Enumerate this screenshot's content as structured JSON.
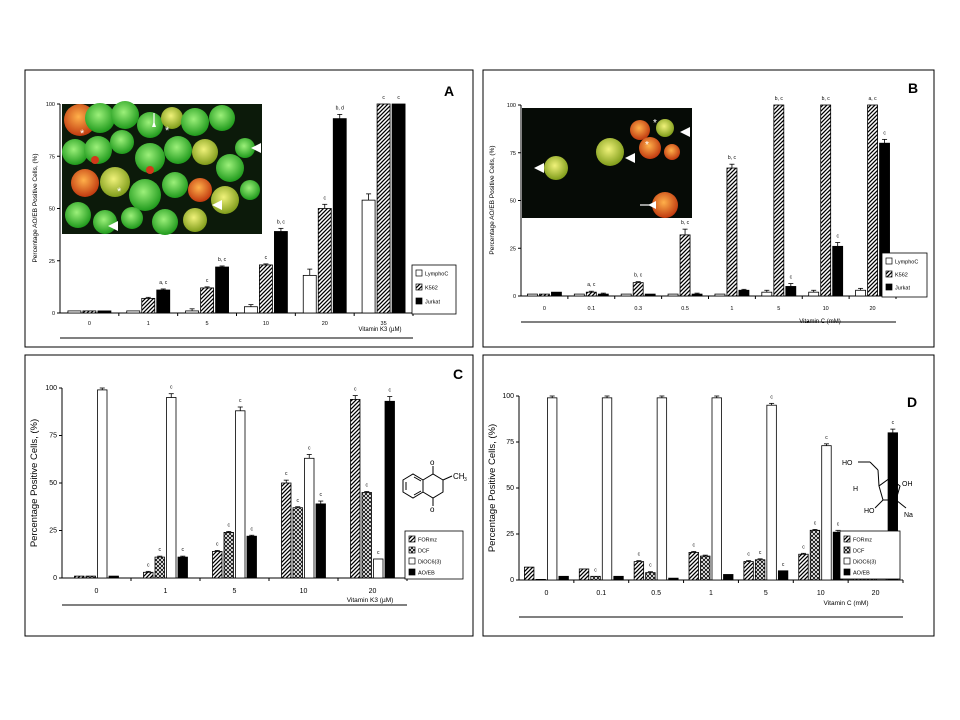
{
  "chart_data": [
    {
      "panel": "A",
      "type": "bar",
      "ylabel": "Percentage AO/EB Positive Cells, (%)",
      "xlabel": "Vitamin K3  (µM)",
      "categories": [
        "0",
        "1",
        "5",
        "10",
        "20",
        "35"
      ],
      "yticks": [
        "0",
        "25",
        "50",
        "75",
        "100"
      ],
      "ylim": [
        0,
        100
      ],
      "legend": [
        "LymphoC",
        "K562",
        "Jurkat"
      ],
      "series": [
        {
          "name": "LymphoC",
          "pattern": "white",
          "values": [
            1,
            1,
            1,
            3,
            18,
            54
          ],
          "errors": [
            0,
            0,
            1,
            1,
            3,
            3
          ],
          "annotations": [
            "",
            "",
            "",
            "",
            "",
            ""
          ]
        },
        {
          "name": "K562",
          "pattern": "hatch",
          "values": [
            1,
            7,
            12,
            23,
            50,
            100
          ],
          "errors": [
            0,
            0.5,
            0.5,
            0.5,
            2,
            0
          ],
          "annotations": [
            "",
            "",
            "c",
            "c",
            "c",
            "c"
          ]
        },
        {
          "name": "Jurkat",
          "pattern": "black",
          "values": [
            1,
            11,
            22,
            39,
            93,
            100
          ],
          "errors": [
            0,
            0.5,
            0.5,
            1.5,
            2,
            0
          ],
          "annotations": [
            "",
            "a, c",
            "b, c",
            "b, c",
            "b, d",
            "c"
          ]
        }
      ],
      "image_markers": [
        "*",
        "*",
        "*"
      ]
    },
    {
      "panel": "B",
      "type": "bar",
      "ylabel": "Percentage AO/EB Positive Cells, (%)",
      "xlabel": "Vitamin C  (mM)",
      "categories": [
        "0",
        "0.1",
        "0.3",
        "0.5",
        "1",
        "5",
        "10",
        "20"
      ],
      "yticks": [
        "0",
        "25",
        "50",
        "75",
        "100"
      ],
      "ylim": [
        0,
        100
      ],
      "legend": [
        "LymphoC",
        "K562",
        "Jurkat"
      ],
      "series": [
        {
          "name": "LymphoC",
          "pattern": "white",
          "values": [
            1,
            1,
            1,
            1,
            1,
            2,
            2,
            3
          ],
          "errors": [
            0,
            0,
            0,
            0,
            0,
            1,
            1,
            1
          ],
          "annotations": [
            "",
            "",
            "",
            "",
            "",
            "",
            "",
            ""
          ]
        },
        {
          "name": "K562",
          "pattern": "hatch",
          "values": [
            1,
            2,
            7,
            32,
            67,
            100,
            100,
            100
          ],
          "errors": [
            0,
            0.5,
            0.5,
            3,
            2,
            0,
            0,
            0
          ],
          "annotations": [
            "",
            "a, c",
            "b, c",
            "b, c",
            "b, c",
            "b, c",
            "b, c",
            "a, c"
          ]
        },
        {
          "name": "Jurkat",
          "pattern": "black",
          "values": [
            2,
            1,
            1,
            1,
            3,
            5,
            26,
            80
          ],
          "errors": [
            0,
            0.5,
            0,
            0.5,
            0.5,
            1.5,
            2,
            2
          ],
          "annotations": [
            "",
            "",
            "",
            "",
            "",
            "c",
            "c",
            "c"
          ]
        }
      ],
      "image_markers": [
        "*",
        "*"
      ]
    },
    {
      "panel": "C",
      "type": "bar",
      "ylabel": "Percentage Positive Cells, (%)",
      "xlabel": "Vitamin K3  (µM)",
      "categories": [
        "0",
        "1",
        "5",
        "10",
        "20"
      ],
      "yticks": [
        "0",
        "25",
        "50",
        "75",
        "100"
      ],
      "ylim": [
        0,
        100
      ],
      "legend": [
        "FORmz",
        "DCF",
        "DiOC6(3)",
        "AO/EB"
      ],
      "series": [
        {
          "name": "FORmz",
          "pattern": "hatch",
          "values": [
            1,
            3,
            14,
            50,
            94
          ],
          "errors": [
            0,
            0.5,
            0.5,
            1.5,
            2
          ],
          "annotations": [
            "",
            "c",
            "c",
            "c",
            "c"
          ]
        },
        {
          "name": "DCF",
          "pattern": "check",
          "values": [
            1,
            11,
            24,
            37,
            45
          ],
          "errors": [
            0,
            0.5,
            0.5,
            0.5,
            0.5
          ],
          "annotations": [
            "",
            "c",
            "c",
            "c",
            "c"
          ]
        },
        {
          "name": "DiOC6(3)",
          "pattern": "white",
          "values": [
            99,
            95,
            88,
            63,
            10
          ],
          "errors": [
            1,
            2,
            2,
            2,
            0
          ],
          "annotations": [
            "",
            "c",
            "c",
            "c",
            "c"
          ]
        },
        {
          "name": "AO/EB",
          "pattern": "black",
          "values": [
            1,
            11,
            22,
            39,
            93
          ],
          "errors": [
            0,
            0.5,
            0.5,
            1.5,
            2.5
          ],
          "annotations": [
            "",
            "c",
            "c",
            "c",
            "c"
          ]
        }
      ]
    },
    {
      "panel": "D",
      "type": "bar",
      "ylabel": "Percentage Positive Cells, (%)",
      "xlabel": "Vitamin C  (mM)",
      "categories": [
        "0",
        "0.1",
        "0.5",
        "1",
        "5",
        "10",
        "20"
      ],
      "yticks": [
        "0",
        "25",
        "50",
        "75",
        "100"
      ],
      "ylim": [
        0,
        100
      ],
      "legend": [
        "FORmz",
        "DCF",
        "DiOC6(3)",
        "AO/EB"
      ],
      "series": [
        {
          "name": "FORmz",
          "pattern": "hatch",
          "values": [
            7,
            6,
            10,
            15,
            10,
            14,
            14
          ],
          "errors": [
            0,
            0,
            0.5,
            0.5,
            0.5,
            0.5,
            0.5
          ],
          "annotations": [
            "",
            "",
            "c",
            "c",
            "c",
            "c",
            "c"
          ]
        },
        {
          "name": "DCF",
          "pattern": "check",
          "values": [
            0,
            2,
            4,
            13,
            11,
            27,
            14
          ],
          "errors": [
            0,
            0,
            0.5,
            0.5,
            0.5,
            0.5,
            0.5
          ],
          "annotations": [
            "",
            "c",
            "c",
            "",
            "c",
            "c",
            ""
          ]
        },
        {
          "name": "DiOC6(3)",
          "pattern": "white",
          "values": [
            99,
            99,
            99,
            99,
            95,
            73,
            15
          ],
          "errors": [
            1,
            1,
            1,
            1,
            1,
            1,
            0
          ],
          "annotations": [
            "",
            "",
            "",
            "",
            "c",
            "c",
            ""
          ]
        },
        {
          "name": "AO/EB",
          "pattern": "black",
          "values": [
            2,
            2,
            1,
            3,
            5,
            26,
            80
          ],
          "errors": [
            0,
            0,
            0,
            0,
            0,
            1,
            2
          ],
          "annotations": [
            "",
            "",
            "",
            "",
            "c",
            "c",
            "c"
          ]
        }
      ],
      "group_annotation": "c"
    }
  ],
  "panel_letters": [
    "A",
    "B",
    "C",
    "D"
  ],
  "structure_labels": {
    "menadione_ch3": "CH",
    "ascorbate_ho1": "HO",
    "ascorbate_oh": "OH",
    "ascorbate_h": "H",
    "ascorbate_ho2": "HO",
    "ascorbate_na": "Na"
  },
  "colors": {
    "frame": "#000000",
    "bar_black": "#000000",
    "bar_white": "#ffffff",
    "photo_bg_a": "#1e3a12",
    "photo_bg_b": "#07100a",
    "cell_green": "#33d12c",
    "cell_orange": "#e07a1a",
    "cell_yellow": "#c9d43a"
  }
}
